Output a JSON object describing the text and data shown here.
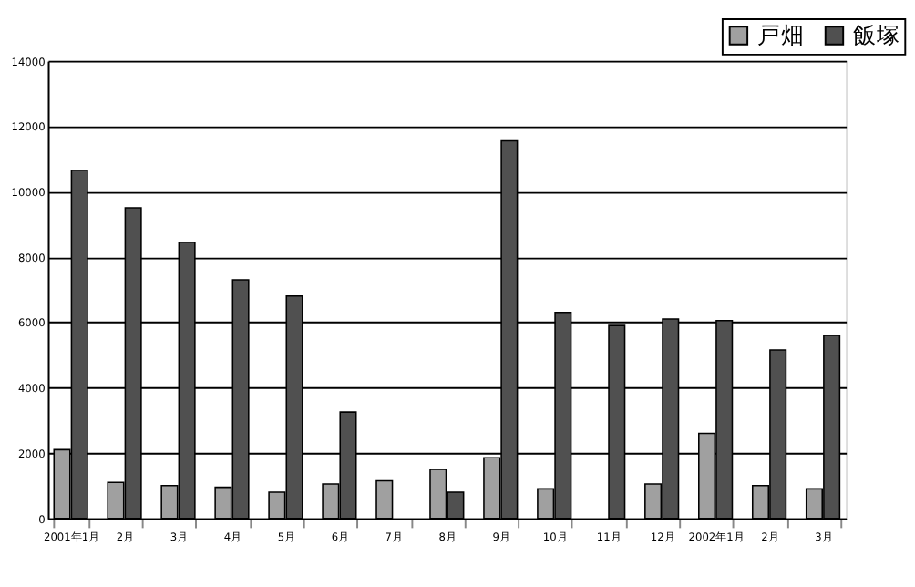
{
  "chart_data": {
    "type": "bar",
    "categories": [
      "2001年1月",
      "2月",
      "3月",
      "4月",
      "5月",
      "6月",
      "7月",
      "8月",
      "9月",
      "10月",
      "11月",
      "12月",
      "2002年1月",
      "2月",
      "3月"
    ],
    "series": [
      {
        "name": "戸畑",
        "color": "#a0a0a0",
        "values": [
          2100,
          1100,
          1000,
          950,
          800,
          1050,
          1150,
          1500,
          1850,
          900,
          null,
          1050,
          2600,
          1000,
          900
        ]
      },
      {
        "name": "飯塚",
        "color": "#505050",
        "values": [
          10650,
          9500,
          8450,
          7300,
          6800,
          3250,
          null,
          800,
          11550,
          6300,
          5900,
          6100,
          6050,
          5150,
          5600
        ]
      }
    ],
    "ylim": [
      0,
      14000
    ],
    "yticks": [
      0,
      2000,
      4000,
      6000,
      8000,
      10000,
      12000,
      14000
    ],
    "grid": "y",
    "legend": "top right"
  }
}
